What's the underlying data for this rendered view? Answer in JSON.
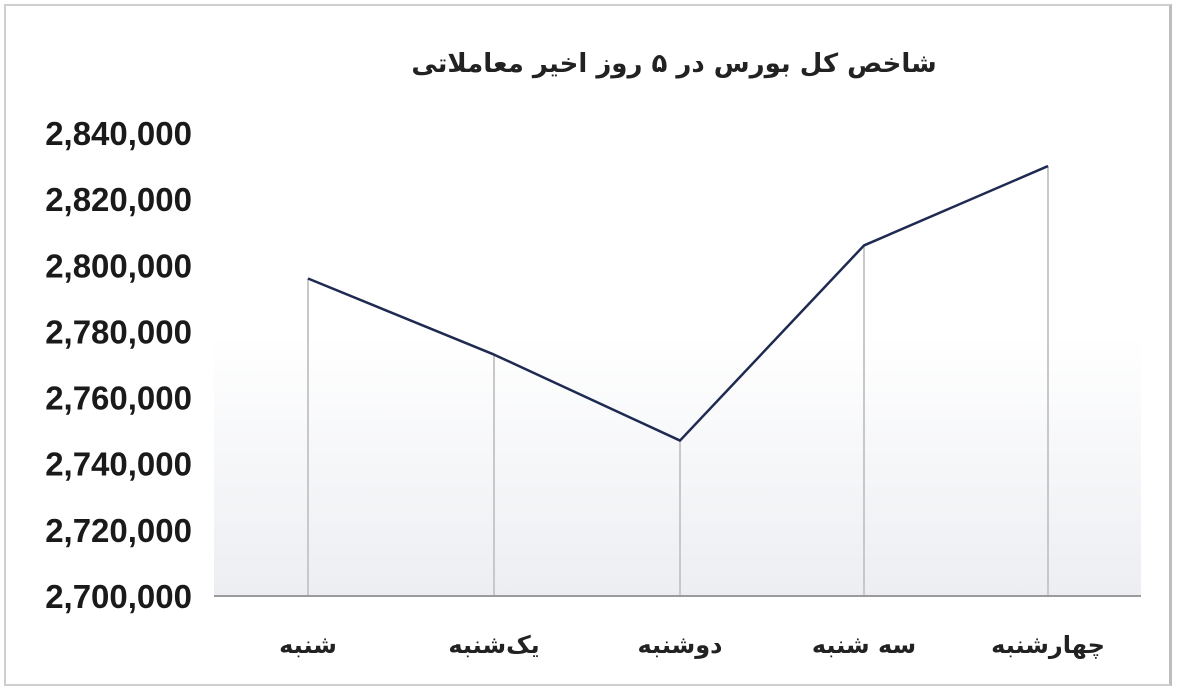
{
  "chart_data": {
    "type": "line",
    "title": "شاخص کل بورس در ۵ روز اخیر معاملاتی",
    "categories": [
      "شنبه",
      "یک‌شنبه",
      "دوشنبه",
      "سه شنبه",
      "چهارشنبه"
    ],
    "values": [
      2796000,
      2773000,
      2747000,
      2806000,
      2830000
    ],
    "yticks": [
      2840000,
      2820000,
      2800000,
      2780000,
      2760000,
      2740000,
      2720000,
      2700000
    ],
    "ytick_labels": [
      "2,840,000",
      "2,820,000",
      "2,800,000",
      "2,780,000",
      "2,760,000",
      "2,740,000",
      "2,720,000",
      "2,700,000"
    ],
    "ylim": [
      2700000,
      2840000
    ],
    "drop_lines": true,
    "grid": false,
    "colors": {
      "line": "#1f2a52",
      "drop_line": "#c8c8c8",
      "fill_gradient": [
        "#ffffff",
        "#eceef2"
      ]
    }
  }
}
